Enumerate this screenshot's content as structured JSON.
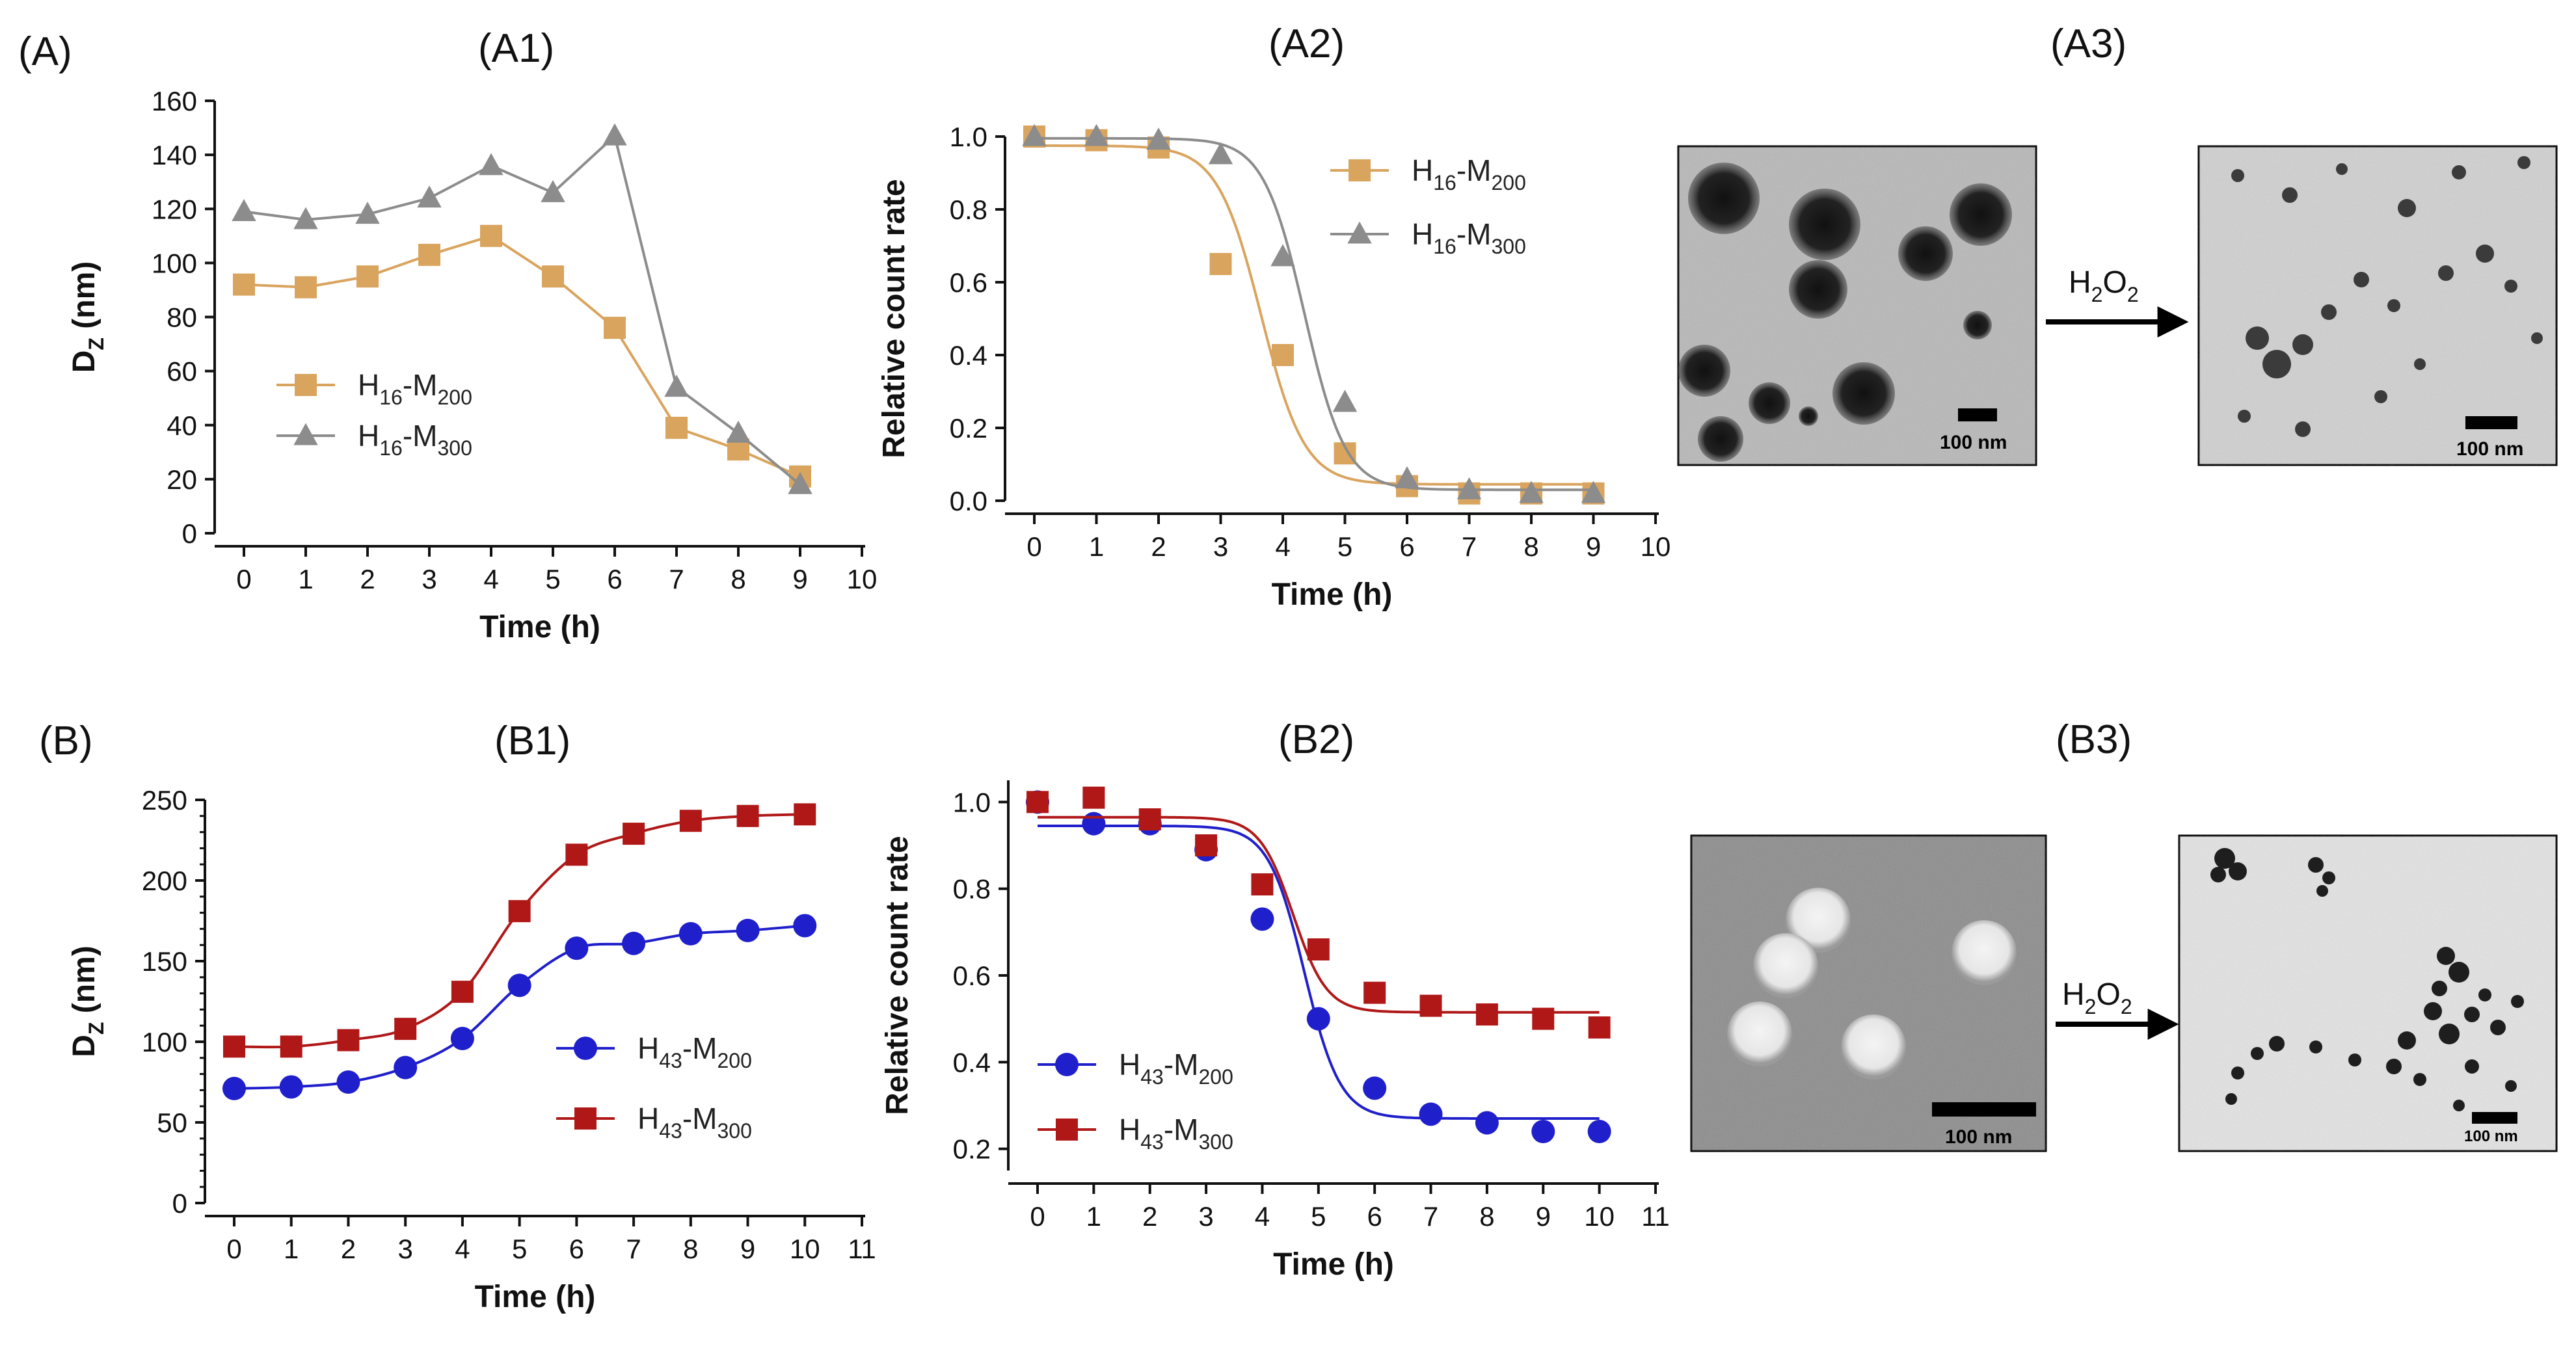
{
  "panel_labels": {
    "A": "(A)",
    "A1": "(A1)",
    "A2": "(A2)",
    "A3": "(A3)",
    "B": "(B)",
    "B1": "(B1)",
    "B2": "(B2)",
    "B3": "(B3)"
  },
  "colors": {
    "tan": "#D9A45E",
    "gray": "#8C8C8C",
    "blue": "#1F1FCC",
    "red": "#B01818",
    "axis": "#111111"
  },
  "tem": {
    "scale_label": "100 nm",
    "arrow_label": "H2O2"
  },
  "chart_data": [
    {
      "id": "A1",
      "type": "line",
      "xlabel": "Time (h)",
      "ylabel": "DZ (nm)",
      "xlim": [
        0,
        10
      ],
      "ylim": [
        0,
        160
      ],
      "xticks": [
        0,
        1,
        2,
        3,
        4,
        5,
        6,
        7,
        8,
        9,
        10
      ],
      "yticks": [
        0,
        20,
        40,
        60,
        80,
        100,
        120,
        140,
        160
      ],
      "legend_position": "middle-left",
      "series": [
        {
          "name": "H16-M200",
          "base": "H",
          "sub1": "16",
          "mid": "-M",
          "sub2": "200",
          "marker": "square",
          "color": "#D9A45E",
          "x": [
            0,
            1,
            2,
            3,
            4,
            5,
            6,
            7,
            8,
            9
          ],
          "y": [
            92,
            91,
            95,
            103,
            110,
            95,
            76,
            39,
            31,
            21
          ]
        },
        {
          "name": "H16-M300",
          "base": "H",
          "sub1": "16",
          "mid": "-M",
          "sub2": "300",
          "marker": "triangle",
          "color": "#8C8C8C",
          "x": [
            0,
            1,
            2,
            3,
            4,
            5,
            6,
            7,
            8,
            9
          ],
          "y": [
            119,
            116,
            118,
            124,
            136,
            126,
            147,
            54,
            37,
            18
          ]
        }
      ]
    },
    {
      "id": "A2",
      "type": "scatter",
      "xlabel": "Time (h)",
      "ylabel": "Relative count rate",
      "xlim": [
        0,
        10
      ],
      "ylim": [
        0,
        1.0
      ],
      "xticks": [
        0,
        1,
        2,
        3,
        4,
        5,
        6,
        7,
        8,
        9,
        10
      ],
      "yticks": [
        0.0,
        0.2,
        0.4,
        0.6,
        0.8,
        1.0
      ],
      "legend_position": "top-right",
      "series": [
        {
          "name": "H16-M200",
          "base": "H",
          "sub1": "16",
          "mid": "-M",
          "sub2": "200",
          "marker": "square",
          "color": "#D9A45E",
          "x": [
            0,
            1,
            2,
            3,
            4,
            5,
            6,
            7,
            8,
            9
          ],
          "y": [
            1.0,
            0.99,
            0.97,
            0.65,
            0.4,
            0.13,
            0.04,
            0.02,
            0.02,
            0.02
          ],
          "fit": {
            "top": 0.975,
            "bottom": 0.045,
            "x50": 3.65,
            "slope": 0.35
          }
        },
        {
          "name": "H16-M300",
          "base": "H",
          "sub1": "16",
          "mid": "-M",
          "sub2": "300",
          "marker": "triangle",
          "color": "#8C8C8C",
          "x": [
            0,
            1,
            2,
            3,
            4,
            5,
            6,
            7,
            8,
            9
          ],
          "y": [
            1.0,
            1.0,
            0.99,
            0.95,
            0.67,
            0.27,
            0.06,
            0.03,
            0.02,
            0.02
          ],
          "fit": {
            "top": 0.995,
            "bottom": 0.03,
            "x50": 4.35,
            "slope": 0.33
          }
        }
      ]
    },
    {
      "id": "B1",
      "type": "line",
      "xlabel": "Time (h)",
      "ylabel": "DZ (nm)",
      "xlim": [
        0,
        11
      ],
      "ylim": [
        0,
        250
      ],
      "xticks": [
        0,
        1,
        2,
        3,
        4,
        5,
        6,
        7,
        8,
        9,
        10,
        11
      ],
      "yticks": [
        0,
        50,
        100,
        150,
        200,
        250
      ],
      "legend_position": "bottom-right",
      "series": [
        {
          "name": "H43-M200",
          "base": "H",
          "sub1": "43",
          "mid": "-M",
          "sub2": "200",
          "marker": "circle",
          "color": "#1F1FCC",
          "x": [
            0,
            1,
            2,
            3,
            4,
            5,
            6,
            7,
            8,
            9,
            10
          ],
          "y": [
            71,
            72,
            75,
            84,
            102,
            135,
            158,
            161,
            167,
            169,
            172
          ]
        },
        {
          "name": "H43-M300",
          "base": "H",
          "sub1": "43",
          "mid": "-M",
          "sub2": "300",
          "marker": "square",
          "color": "#B01818",
          "x": [
            0,
            1,
            2,
            3,
            4,
            5,
            6,
            7,
            8,
            9,
            10
          ],
          "y": [
            97,
            97,
            101,
            108,
            131,
            181,
            216,
            229,
            237,
            240,
            241
          ]
        }
      ]
    },
    {
      "id": "B2",
      "type": "scatter",
      "xlabel": "Time (h)",
      "ylabel": "Relative count rate",
      "xlim": [
        0,
        11
      ],
      "ylim": [
        0.15,
        1.05
      ],
      "xticks": [
        0,
        1,
        2,
        3,
        4,
        5,
        6,
        7,
        8,
        9,
        10,
        11
      ],
      "yticks": [
        0.2,
        0.4,
        0.6,
        0.8,
        1.0
      ],
      "legend_position": "bottom-left",
      "series": [
        {
          "name": "H43-M200",
          "base": "H",
          "sub1": "43",
          "mid": "-M",
          "sub2": "200",
          "marker": "circle",
          "color": "#1F1FCC",
          "x": [
            0,
            1,
            2,
            3,
            4,
            5,
            6,
            7,
            8,
            9,
            10
          ],
          "y": [
            1.0,
            0.95,
            0.95,
            0.89,
            0.73,
            0.5,
            0.34,
            0.28,
            0.26,
            0.24,
            0.24
          ],
          "fit": {
            "top": 0.945,
            "bottom": 0.27,
            "x50": 4.75,
            "slope": 0.32
          }
        },
        {
          "name": "H43-M300",
          "base": "H",
          "sub1": "43",
          "mid": "-M",
          "sub2": "300",
          "marker": "square",
          "color": "#B01818",
          "x": [
            0,
            1,
            2,
            3,
            4,
            5,
            6,
            7,
            8,
            9,
            10
          ],
          "y": [
            1.0,
            1.01,
            0.96,
            0.9,
            0.81,
            0.66,
            0.56,
            0.53,
            0.51,
            0.5,
            0.48
          ],
          "fit": {
            "top": 0.965,
            "bottom": 0.515,
            "x50": 4.55,
            "slope": 0.3
          }
        }
      ]
    }
  ]
}
